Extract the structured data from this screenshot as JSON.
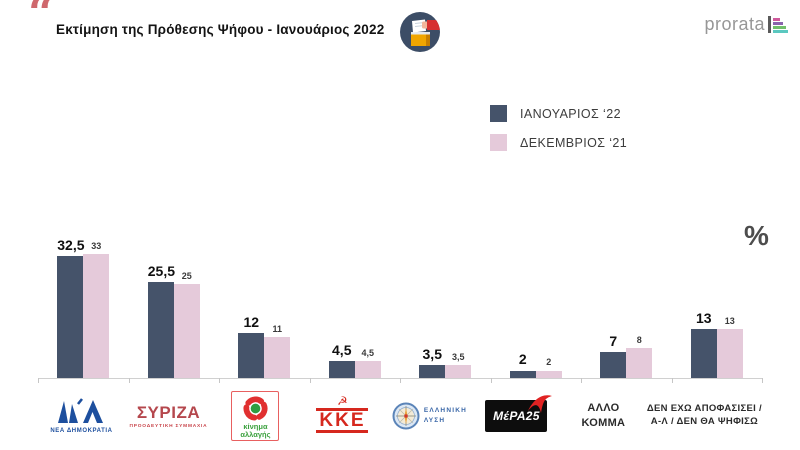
{
  "header": {
    "quote_mark": "“",
    "title": "Εκτίμηση της Πρόθεσης Ψήφου - Ιανουάριος 2022",
    "brand": "prorata"
  },
  "legend": {
    "items": [
      {
        "label": "ΙΑΝΟΥΑΡΙΟΣ ‘22",
        "color": "#45536a"
      },
      {
        "label": "ΔΕΚΕΜΒΡΙΟΣ ‘21",
        "color": "#e5cada"
      }
    ]
  },
  "unit_symbol": "%",
  "chart_data": {
    "type": "bar",
    "title": "Εκτίμηση της Πρόθεσης Ψήφου - Ιανουάριος 2022",
    "categories": [
      "ΝΕΑ ΔΗΜΟΚΡΑΤΙΑ",
      "ΣΥΡΙΖΑ ΠΡΟΟΔΕΥΤΙΚΗ ΣΥΜΜΑΧΙΑ",
      "ΚΙΝΗΜΑ ΑΛΛΑΓΗΣ",
      "ΚΚΕ",
      "ΕΛΛΗΝΙΚΗ ΛΥΣΗ",
      "ΜέΡΑ25",
      "ΑΛΛΟ ΚΟΜΜΑ",
      "ΔΕΝ ΕΧΩ ΑΠΟΦΑΣΙΣΕΙ / Α-Λ / ΔΕΝ ΘΑ ΨΗΦΙΣΩ"
    ],
    "series": [
      {
        "name": "ΙΑΝΟΥΑΡΙΟΣ ‘22",
        "color": "#45536a",
        "values": [
          32.5,
          25.5,
          12,
          4.5,
          3.5,
          2,
          7,
          13
        ],
        "labels": [
          "32,5",
          "25,5",
          "12",
          "4,5",
          "3,5",
          "2",
          "7",
          "13"
        ]
      },
      {
        "name": "ΔΕΚΕΜΒΡΙΟΣ ‘21",
        "color": "#e5cada",
        "values": [
          33,
          25,
          11,
          4.5,
          3.5,
          2,
          8,
          13
        ],
        "labels": [
          "33",
          "25",
          "11",
          "4,5",
          "3,5",
          "2",
          "8",
          "13"
        ]
      }
    ],
    "ylim": [
      0,
      35
    ],
    "value_suffix": "%",
    "grid": false,
    "legend_position": "top-right"
  },
  "parties": {
    "nd": {
      "name": "ΝΕΑ ΔΗΜΟΚΡΑΤΙΑ"
    },
    "syriza": {
      "name": "ΣΥΡΙΖΑ",
      "subtitle": "ΠΡΟΟΔΕΥΤΙΚΗ ΣΥΜΜΑΧΙΑ"
    },
    "kinal": {
      "line1": "κίνημα",
      "line2": "αλλαγής"
    },
    "kke": {
      "name": "ΚΚΕ",
      "symbol": "☭"
    },
    "el": {
      "line1": "ΕΛΛΗΝΙΚΗ",
      "line2": "ΛΥΣΗ"
    },
    "mera": {
      "name": "ΜέΡΑ25"
    },
    "other": {
      "line1": "ΑΛΛΟ",
      "line2": "ΚΟΜΜΑ"
    },
    "undecided": {
      "line1": "ΔΕΝ  ΕΧΩ ΑΠΟΦΑΣΙΣΕΙ /",
      "line2": "Α-Λ / ΔΕΝ ΘΑ ΨΗΦΙΣΩ"
    }
  }
}
